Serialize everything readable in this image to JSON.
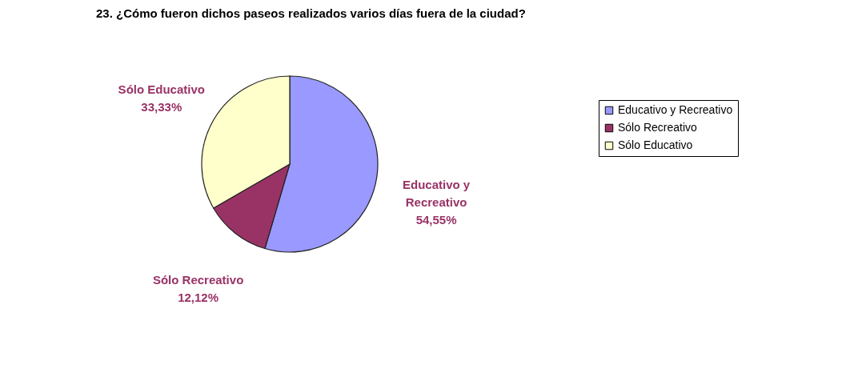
{
  "chart_data": {
    "type": "pie",
    "title": "23. ¿Cómo fueron dichos paseos realizados varios días fuera de la ciudad?",
    "categories": [
      "Educativo y Recreativo",
      "Sólo Recreativo",
      "Sólo Educativo"
    ],
    "values": [
      54.55,
      12.12,
      33.33
    ],
    "colors": [
      "#9999ff",
      "#993366",
      "#ffffcc"
    ],
    "value_labels": [
      "54,55%",
      "12,12%",
      "33,33%"
    ],
    "legend": "right"
  }
}
